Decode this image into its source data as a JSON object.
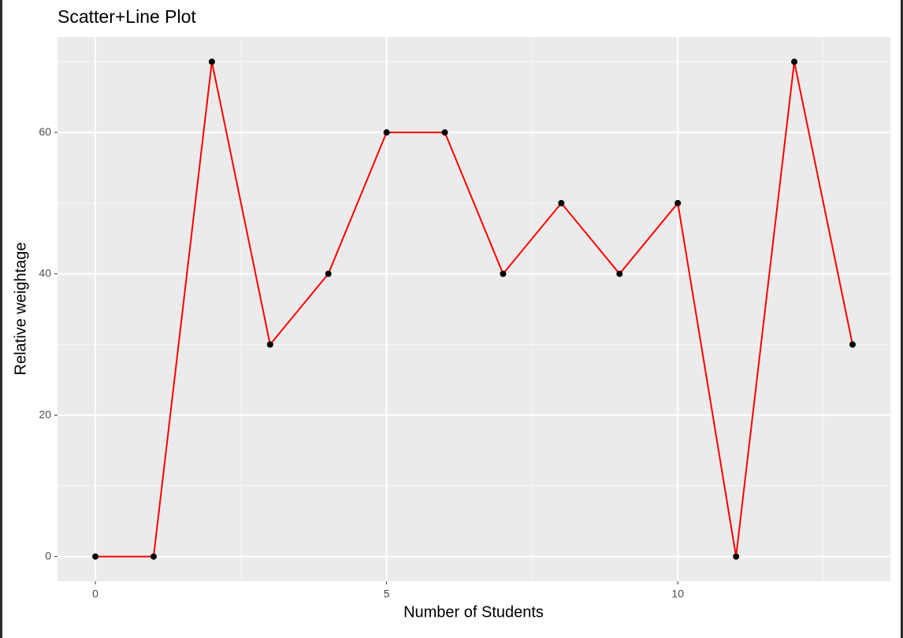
{
  "chart_data": {
    "type": "line",
    "title": "Scatter+Line Plot",
    "x_label": "Number of Students",
    "y_label": "Relative weightage",
    "x": [
      0,
      1,
      2,
      3,
      4,
      5,
      6,
      7,
      8,
      9,
      10,
      11,
      12,
      13
    ],
    "series": [
      {
        "color": "#ff0000",
        "point_color": "#000000",
        "values": [
          0,
          0,
          70,
          30,
          40,
          60,
          60,
          40,
          50,
          40,
          50,
          0,
          70,
          30
        ]
      }
    ],
    "xlim": [
      -0.65,
      13.65
    ],
    "ylim": [
      -3.5,
      73.5
    ],
    "xticks": [
      0,
      5,
      10
    ],
    "yticks": [
      0,
      20,
      40,
      60
    ],
    "x_minor_ticks": [
      2.5,
      7.5,
      12.5
    ],
    "y_minor_ticks": [
      10,
      30,
      50,
      70
    ],
    "grid": true
  }
}
